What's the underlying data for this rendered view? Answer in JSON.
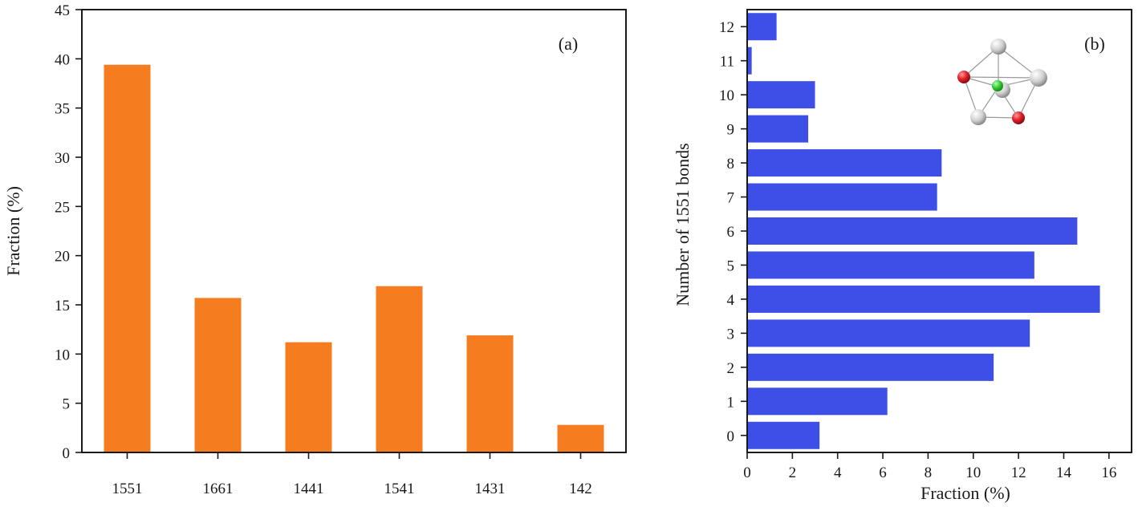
{
  "colors": {
    "panel_a_bar": "#F57C1F",
    "panel_b_bar": "#3D4FE6",
    "axis": "#1a1a1a",
    "atom_white": "#d8d8d8",
    "atom_red": "#e01f26",
    "atom_green": "#33cc33"
  },
  "chart_data": [
    {
      "type": "bar",
      "orientation": "vertical",
      "panel_label": "(a)",
      "categories": [
        "1551",
        "1661",
        "1441",
        "1541",
        "1431",
        "142"
      ],
      "values": [
        39.4,
        15.7,
        11.2,
        16.9,
        11.9,
        2.8
      ],
      "xlabel": "",
      "ylabel": "Fraction (%)",
      "ylim": [
        0,
        45
      ],
      "yticks": [
        "0",
        "5",
        "10",
        "15",
        "20",
        "25",
        "30",
        "35",
        "40",
        "45"
      ],
      "grid": false,
      "legend": "none"
    },
    {
      "type": "bar",
      "orientation": "horizontal",
      "panel_label": "(b)",
      "categories": [
        "0",
        "1",
        "2",
        "3",
        "4",
        "5",
        "6",
        "7",
        "8",
        "9",
        "10",
        "11",
        "12"
      ],
      "values": [
        3.2,
        6.2,
        10.9,
        12.5,
        15.6,
        12.7,
        14.6,
        8.4,
        8.6,
        2.7,
        3.0,
        0.2,
        1.3
      ],
      "xlabel": "Fraction (%)",
      "ylabel": "Number of 1551 bonds",
      "xlim": [
        0,
        17
      ],
      "xticks": [
        "0",
        "2",
        "4",
        "6",
        "8",
        "10",
        "12",
        "14",
        "16"
      ],
      "grid": false,
      "legend": "none",
      "inset": "cluster-structure-image"
    }
  ]
}
